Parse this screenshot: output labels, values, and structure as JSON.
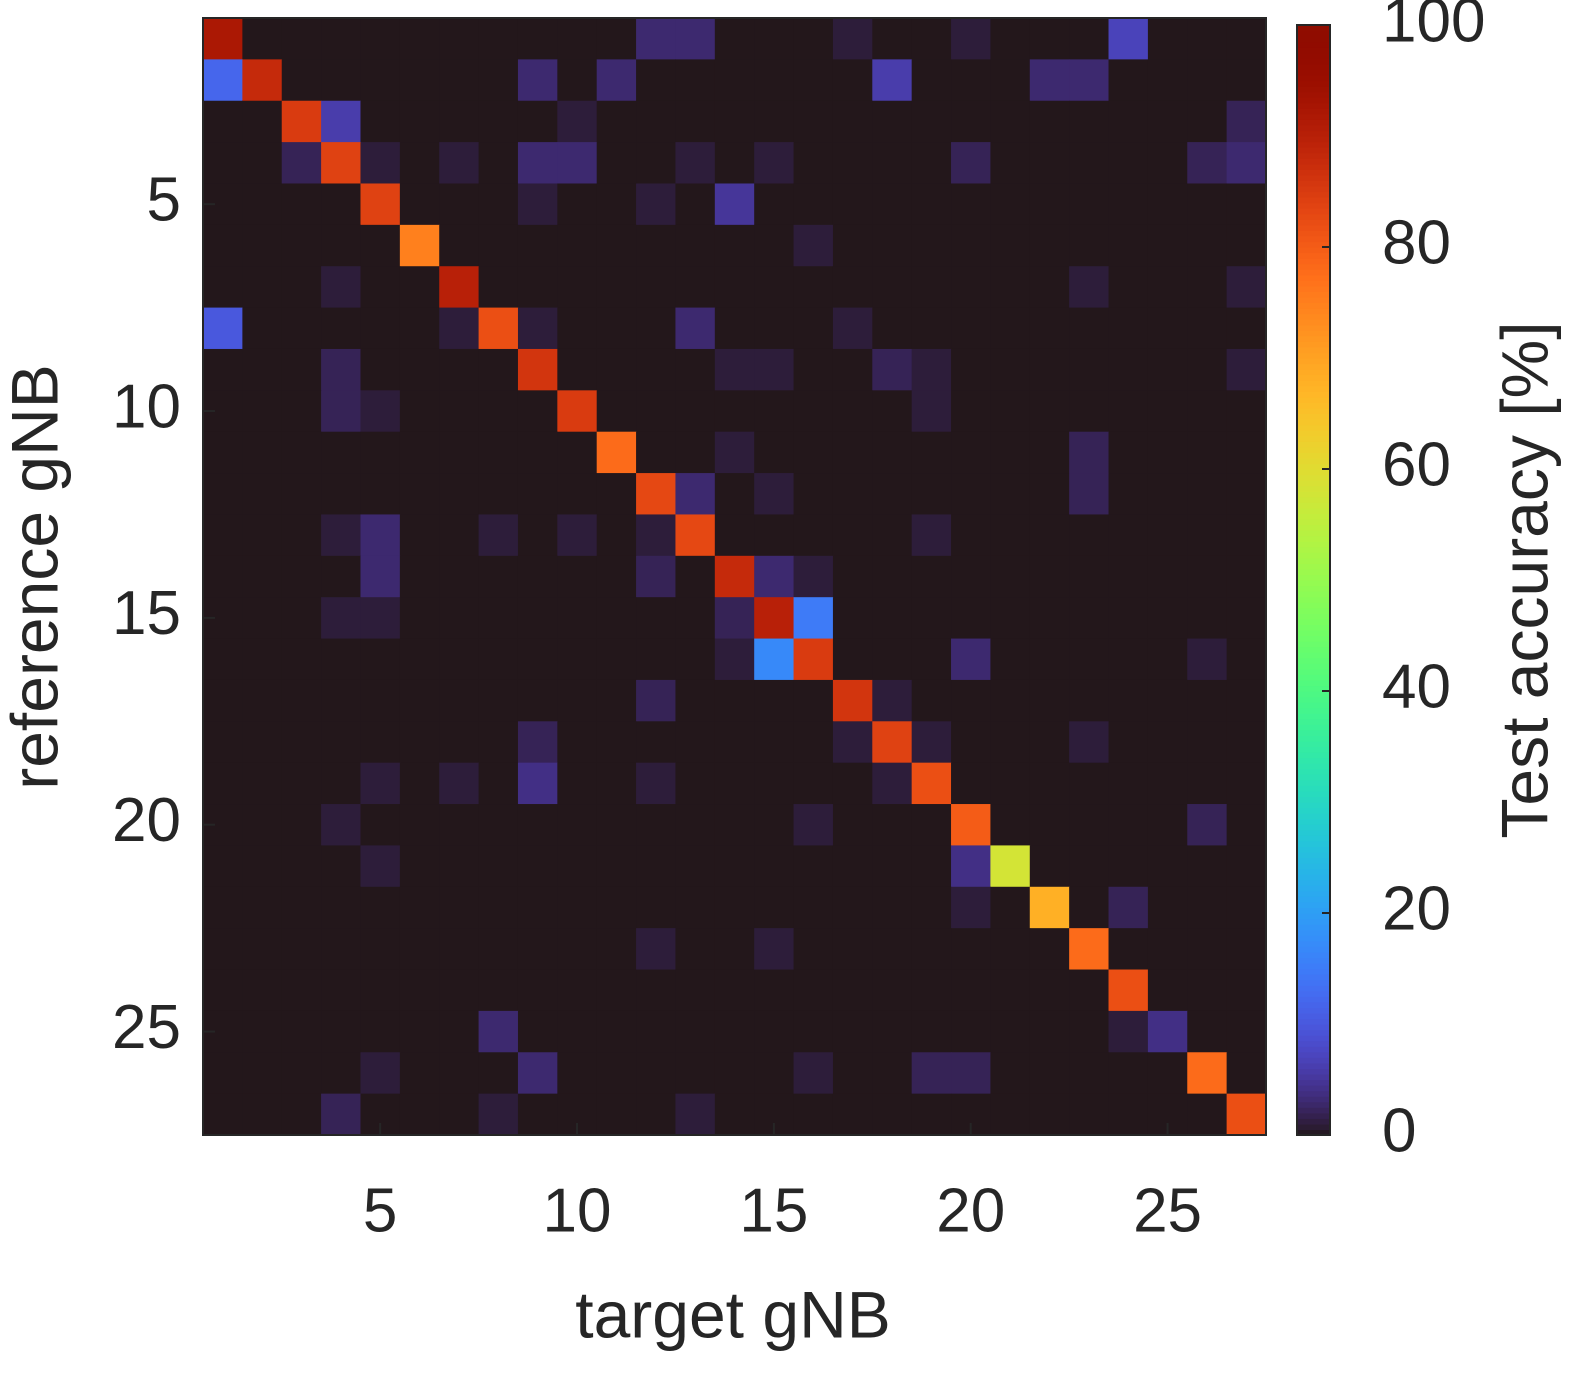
{
  "chart_data": {
    "type": "heatmap",
    "x_label": "target gNB",
    "y_label": "reference gNB",
    "colorbar_label": "Test accuracy [%]",
    "colormap": "turbo",
    "clim": [
      0,
      100
    ],
    "cticks": [
      0,
      20,
      40,
      60,
      80,
      100
    ],
    "xlim": [
      0.5,
      27.5
    ],
    "ylim": [
      0.5,
      27.5
    ],
    "xticks": [
      5,
      10,
      15,
      20,
      25
    ],
    "yticks": [
      5,
      10,
      15,
      20,
      25
    ],
    "z": [
      [
        92,
        0,
        0,
        0,
        0,
        0,
        0,
        0,
        0,
        0,
        0,
        3,
        3,
        0,
        0,
        0,
        1,
        0,
        0,
        1,
        0,
        0,
        0,
        7,
        0,
        0,
        0
      ],
      [
        12,
        88,
        0,
        0,
        0,
        0,
        0,
        0,
        3,
        0,
        3,
        0,
        0,
        0,
        0,
        0,
        0,
        6,
        0,
        0,
        0,
        3,
        3,
        0,
        0,
        0,
        0
      ],
      [
        0,
        0,
        85,
        6,
        0,
        0,
        0,
        0,
        0,
        1,
        0,
        0,
        0,
        0,
        0,
        0,
        0,
        0,
        0,
        0,
        0,
        0,
        0,
        0,
        0,
        0,
        2
      ],
      [
        0,
        0,
        2,
        84,
        1,
        0,
        1,
        0,
        3,
        3,
        0,
        0,
        1,
        0,
        1,
        0,
        0,
        0,
        0,
        2,
        0,
        0,
        0,
        0,
        0,
        2,
        3
      ],
      [
        0,
        0,
        0,
        0,
        84,
        0,
        0,
        0,
        1,
        0,
        0,
        1,
        0,
        5,
        0,
        0,
        0,
        0,
        0,
        0,
        0,
        0,
        0,
        0,
        0,
        0,
        0
      ],
      [
        0,
        0,
        0,
        0,
        0,
        75,
        0,
        0,
        0,
        0,
        0,
        0,
        0,
        0,
        0,
        1,
        0,
        0,
        0,
        0,
        0,
        0,
        0,
        0,
        0,
        0,
        0
      ],
      [
        0,
        0,
        0,
        1,
        0,
        0,
        90,
        0,
        0,
        0,
        0,
        0,
        0,
        0,
        0,
        0,
        0,
        0,
        0,
        0,
        0,
        0,
        1,
        0,
        0,
        0,
        1
      ],
      [
        10,
        0,
        0,
        0,
        0,
        0,
        1,
        82,
        1,
        0,
        0,
        0,
        3,
        0,
        0,
        0,
        1,
        0,
        0,
        0,
        0,
        0,
        0,
        0,
        0,
        0,
        0
      ],
      [
        0,
        0,
        0,
        2,
        0,
        0,
        0,
        0,
        86,
        0,
        0,
        0,
        0,
        1,
        1,
        0,
        0,
        2,
        1,
        0,
        0,
        0,
        0,
        0,
        0,
        0,
        1
      ],
      [
        0,
        0,
        0,
        2,
        1,
        0,
        0,
        0,
        0,
        85,
        0,
        0,
        0,
        0,
        0,
        0,
        0,
        0,
        1,
        0,
        0,
        0,
        0,
        0,
        0,
        0,
        0
      ],
      [
        0,
        0,
        0,
        0,
        0,
        0,
        0,
        0,
        0,
        0,
        78,
        0,
        0,
        1,
        0,
        0,
        0,
        0,
        0,
        0,
        0,
        0,
        2,
        0,
        0,
        0,
        0
      ],
      [
        0,
        0,
        0,
        0,
        0,
        0,
        0,
        0,
        0,
        0,
        0,
        83,
        3,
        0,
        1,
        0,
        0,
        0,
        0,
        0,
        0,
        0,
        2,
        0,
        0,
        0,
        0
      ],
      [
        0,
        0,
        0,
        1,
        3,
        0,
        0,
        1,
        0,
        1,
        0,
        1,
        83,
        0,
        0,
        0,
        0,
        0,
        1,
        0,
        0,
        0,
        0,
        0,
        0,
        0,
        0
      ],
      [
        0,
        0,
        0,
        0,
        3,
        0,
        0,
        0,
        0,
        0,
        0,
        2,
        0,
        88,
        3,
        1,
        0,
        0,
        0,
        0,
        0,
        0,
        0,
        0,
        0,
        0,
        0
      ],
      [
        0,
        0,
        0,
        1,
        1,
        0,
        0,
        0,
        0,
        0,
        0,
        0,
        0,
        2,
        90,
        15,
        0,
        0,
        0,
        0,
        0,
        0,
        0,
        0,
        0,
        0,
        0
      ],
      [
        0,
        0,
        0,
        0,
        0,
        0,
        0,
        0,
        0,
        0,
        0,
        0,
        0,
        1,
        17,
        85,
        0,
        0,
        0,
        3,
        0,
        0,
        0,
        0,
        0,
        1,
        0
      ],
      [
        0,
        0,
        0,
        0,
        0,
        0,
        0,
        0,
        0,
        0,
        0,
        2,
        0,
        0,
        0,
        0,
        86,
        1,
        0,
        0,
        0,
        0,
        0,
        0,
        0,
        0,
        0
      ],
      [
        0,
        0,
        0,
        0,
        0,
        0,
        0,
        0,
        2,
        0,
        0,
        0,
        0,
        0,
        0,
        0,
        1,
        84,
        1,
        0,
        0,
        0,
        1,
        0,
        0,
        0,
        0
      ],
      [
        0,
        0,
        0,
        0,
        1,
        0,
        1,
        0,
        4,
        0,
        0,
        1,
        0,
        0,
        0,
        0,
        0,
        1,
        82,
        0,
        0,
        0,
        0,
        0,
        0,
        0,
        0
      ],
      [
        0,
        0,
        0,
        1,
        0,
        0,
        0,
        0,
        0,
        0,
        0,
        0,
        0,
        0,
        0,
        1,
        0,
        0,
        0,
        80,
        0,
        0,
        0,
        0,
        0,
        2,
        0
      ],
      [
        0,
        0,
        0,
        0,
        1,
        0,
        0,
        0,
        0,
        0,
        0,
        0,
        0,
        0,
        0,
        0,
        0,
        0,
        0,
        4,
        58,
        0,
        0,
        0,
        0,
        0,
        0
      ],
      [
        0,
        0,
        0,
        0,
        0,
        0,
        0,
        0,
        0,
        0,
        0,
        0,
        0,
        0,
        0,
        0,
        0,
        0,
        0,
        1,
        0,
        68,
        0,
        2,
        0,
        0,
        0
      ],
      [
        0,
        0,
        0,
        0,
        0,
        0,
        0,
        0,
        0,
        0,
        0,
        1,
        0,
        0,
        1,
        0,
        0,
        0,
        0,
        0,
        0,
        0,
        78,
        0,
        0,
        0,
        0
      ],
      [
        0,
        0,
        0,
        0,
        0,
        0,
        0,
        0,
        0,
        0,
        0,
        0,
        0,
        0,
        0,
        0,
        0,
        0,
        0,
        0,
        0,
        0,
        0,
        82,
        0,
        0,
        0
      ],
      [
        0,
        0,
        0,
        0,
        0,
        0,
        0,
        3,
        0,
        0,
        0,
        0,
        0,
        0,
        0,
        0,
        0,
        0,
        0,
        0,
        0,
        0,
        0,
        1,
        4,
        0,
        0
      ],
      [
        0,
        0,
        0,
        0,
        1,
        0,
        0,
        0,
        3,
        0,
        0,
        0,
        0,
        0,
        0,
        1,
        0,
        0,
        2,
        2,
        0,
        0,
        0,
        0,
        0,
        78,
        0
      ],
      [
        0,
        0,
        0,
        2,
        0,
        0,
        0,
        1,
        0,
        0,
        0,
        0,
        1,
        0,
        0,
        0,
        0,
        0,
        0,
        0,
        0,
        0,
        0,
        0,
        0,
        0,
        82
      ]
    ]
  }
}
